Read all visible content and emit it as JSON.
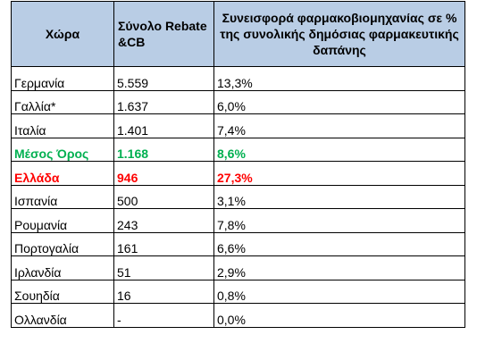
{
  "table": {
    "headers": [
      "Χώρα",
      "Σύνολο Rebate &CB",
      "Συνεισφορά φαρμακοβιομηχανίας σε % της συνολικής δημόσιας φαρμακευτικής δαπάνης"
    ],
    "rows": [
      {
        "country": "Γερμανία",
        "total": "5.559",
        "share": "13,3%"
      },
      {
        "country": "Γαλλία*",
        "total": "1.637",
        "share": "6,0%"
      },
      {
        "country": "Ιταλία",
        "total": "1.401",
        "share": "7,4%"
      },
      {
        "country": "Μέσος Όρος",
        "total": "1.168",
        "share": "8,6%"
      },
      {
        "country": "Ελλάδα",
        "total": "946",
        "share": "27,3%"
      },
      {
        "country": "Ισπανία",
        "total": "500",
        "share": "3,1%"
      },
      {
        "country": "Ρουμανία",
        "total": "243",
        "share": "7,8%"
      },
      {
        "country": "Πορτογαλία",
        "total": "161",
        "share": "6,6%"
      },
      {
        "country": "Ιρλανδία",
        "total": "51",
        "share": "2,9%"
      },
      {
        "country": "Σουηδία",
        "total": "16",
        "share": "0,8%"
      },
      {
        "country": "Ολλανδία",
        "total": "-",
        "share": "0,0%"
      }
    ]
  },
  "colors": {
    "header_bg": "#b9cde5",
    "average_text": "#00b050",
    "greece_text": "#ff0000"
  }
}
